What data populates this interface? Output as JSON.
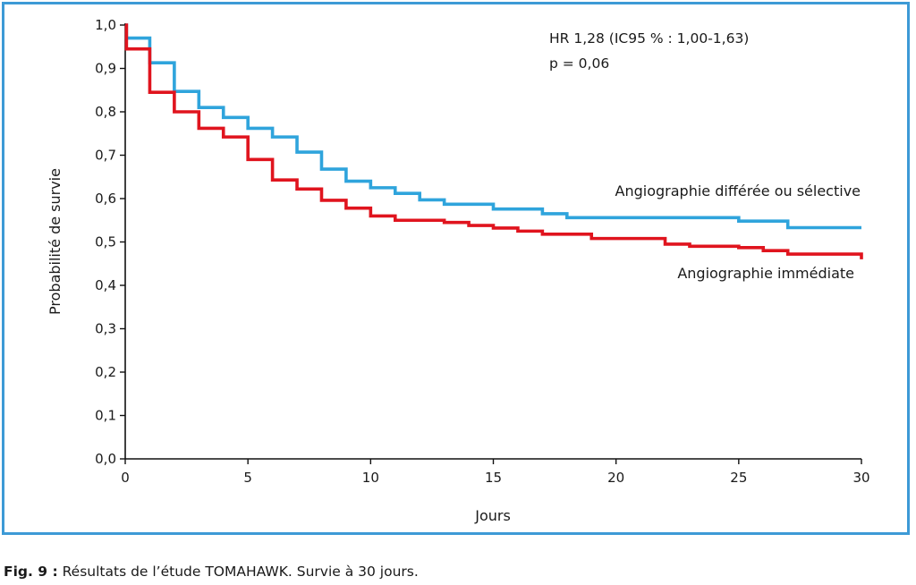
{
  "chart_data": {
    "type": "line",
    "step": true,
    "xlabel": "Jours",
    "ylabel": "Probabilité de survie",
    "xlim": [
      0,
      30
    ],
    "ylim": [
      0,
      1.0
    ],
    "x_ticks": [
      0,
      5,
      10,
      15,
      20,
      25,
      30
    ],
    "x_tick_labels": [
      "0",
      "5",
      "10",
      "15",
      "20",
      "25",
      "30"
    ],
    "y_ticks": [
      0,
      0.1,
      0.2,
      0.3,
      0.4,
      0.5,
      0.6,
      0.7,
      0.8,
      0.9,
      1.0
    ],
    "y_tick_labels": [
      "0,0",
      "0,1",
      "0,2",
      "0,3",
      "0,4",
      "0,5",
      "0,6",
      "0,7",
      "0,8",
      "0,9",
      "1,0"
    ],
    "grid": false,
    "annotations": [
      "HR 1,28 (IC95 % : 1,00-1,63)",
      "p = 0,06"
    ],
    "series": [
      {
        "name": "Angiographie différée ou sélective",
        "color": "#2fa4dc",
        "x": [
          0,
          0.05,
          1,
          2,
          3,
          4,
          5,
          6,
          7,
          8,
          9,
          10,
          11,
          12,
          13,
          15,
          17,
          18,
          25,
          27,
          30
        ],
        "y": [
          1.0,
          0.97,
          0.913,
          0.847,
          0.81,
          0.787,
          0.762,
          0.742,
          0.707,
          0.668,
          0.64,
          0.625,
          0.612,
          0.597,
          0.587,
          0.576,
          0.565,
          0.556,
          0.548,
          0.533,
          0.533
        ]
      },
      {
        "name": "Angiographie immédiate",
        "color": "#e0141e",
        "x": [
          0,
          0.05,
          1,
          2,
          3,
          4,
          5,
          6,
          7,
          8,
          9,
          10,
          11,
          13,
          14,
          15,
          16,
          17,
          19,
          22,
          23,
          25,
          26,
          27,
          30
        ],
        "y": [
          1.0,
          0.945,
          0.845,
          0.8,
          0.762,
          0.742,
          0.69,
          0.643,
          0.622,
          0.596,
          0.578,
          0.56,
          0.55,
          0.545,
          0.538,
          0.532,
          0.525,
          0.518,
          0.508,
          0.495,
          0.49,
          0.487,
          0.48,
          0.472,
          0.46
        ]
      }
    ]
  },
  "caption": {
    "label": "Fig. 9 :",
    "text": " Résultats de l’étude TOMAHAWK. Survie à 30 jours."
  }
}
